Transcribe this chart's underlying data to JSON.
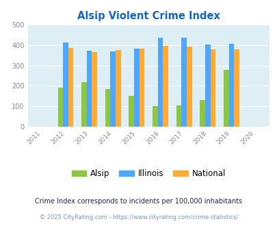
{
  "title": "Alsip Violent Crime Index",
  "all_years": [
    2011,
    2012,
    2013,
    2014,
    2015,
    2016,
    2017,
    2018,
    2019,
    2020
  ],
  "data_years": [
    2012,
    2013,
    2014,
    2015,
    2016,
    2017,
    2018,
    2019
  ],
  "alsip": [
    190,
    218,
    185,
    150,
    100,
    105,
    130,
    280
  ],
  "illinois": [
    415,
    373,
    370,
    383,
    437,
    438,
    405,
    408
  ],
  "national": [
    387,
    368,
    376,
    383,
    397,
    394,
    379,
    379
  ],
  "alsip_color": "#8dc63f",
  "illinois_color": "#4da6ff",
  "national_color": "#ffaa33",
  "bg_color": "#deeef5",
  "title_color": "#1166cc",
  "ylim": [
    0,
    500
  ],
  "ylabel_ticks": [
    0,
    100,
    200,
    300,
    400,
    500
  ],
  "bar_width": 0.22,
  "legend_labels": [
    "Alsip",
    "Illinois",
    "National"
  ],
  "footnote1": "Crime Index corresponds to incidents per 100,000 inhabitants",
  "footnote2": "© 2025 CityRating.com - https://www.cityrating.com/crime-statistics/",
  "footnote1_color": "#1a2a4a",
  "footnote2_color": "#7799bb"
}
